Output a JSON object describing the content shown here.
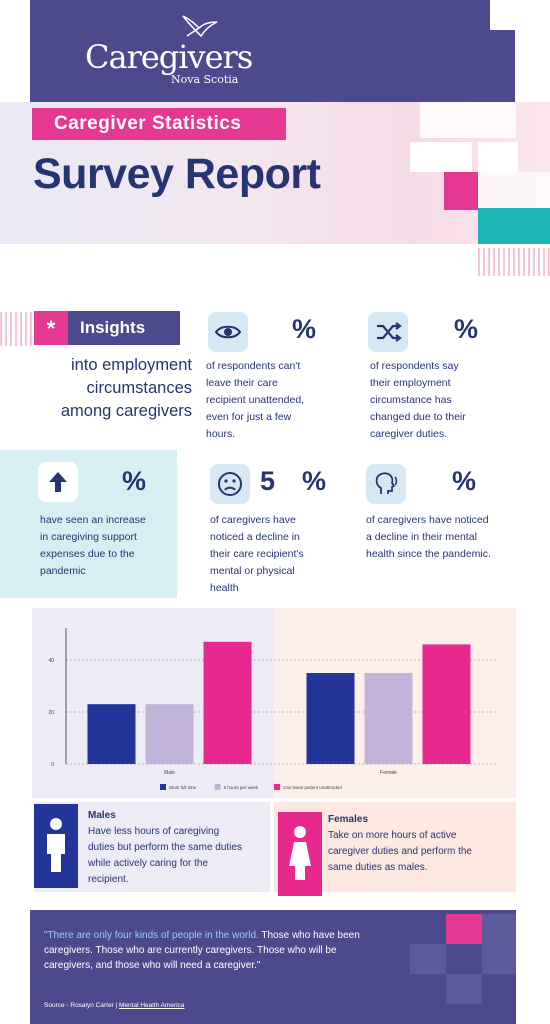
{
  "header": {
    "logo_main": "Caregivers",
    "logo_sub": "Nova Scotia"
  },
  "hero": {
    "tag": "Caregiver Statistics",
    "title": "Survey Report"
  },
  "insights": {
    "star": "*",
    "label": "Insights",
    "subtitle_lines": [
      "into employment",
      "circumstances",
      "among caregivers"
    ]
  },
  "stats": [
    {
      "icon": "eye-icon",
      "pct_symbol": "%",
      "text_lines": [
        "of respondents can't",
        "leave their care",
        "recipient unattended,",
        "even for just a few",
        "hours."
      ]
    },
    {
      "icon": "shuffle-icon",
      "pct_symbol": "%",
      "text_lines": [
        "of respondents say",
        "their employment",
        "circumstance has",
        "changed due to their",
        "caregiver duties."
      ]
    },
    {
      "icon": "arrow-up-icon",
      "pct_symbol": "%",
      "text_lines": [
        "have seen an increase",
        "in caregiving support",
        "expenses due to the",
        "pandemic"
      ]
    },
    {
      "icon": "sad-face-icon",
      "pct_symbol": "%",
      "digit": "5",
      "text_lines": [
        "of caregivers have",
        "noticed a decline in",
        "their care recipient's",
        "mental or physical",
        "health"
      ]
    },
    {
      "icon": "head-profile-icon",
      "pct_symbol": "%",
      "text_lines": [
        "of caregivers have noticed",
        "a decline in their mental",
        "health since the pandemic."
      ]
    }
  ],
  "chart_data": {
    "type": "bar",
    "categories": [
      "Male",
      "Female"
    ],
    "series": [
      {
        "name": "Work full time",
        "values": [
          23,
          35
        ],
        "color": "#24359a"
      },
      {
        "name": "5 hours per week",
        "values": [
          23,
          35
        ],
        "color": "#c2b4d8"
      },
      {
        "name": "Can leave patient unattended",
        "values": [
          47,
          46
        ],
        "color": "#e6288f"
      }
    ],
    "y_ticks": [
      0,
      20,
      40
    ],
    "ylim": [
      0,
      50
    ],
    "grid": true,
    "legend_position": "bottom"
  },
  "gender": {
    "males": {
      "title": "Males",
      "text_lines": [
        "Have less hours of caregiving",
        "duties but perform the same duties",
        "while actively caring for the",
        "recipient."
      ]
    },
    "females": {
      "title": "Females",
      "text_lines": [
        "Take on more hours of active",
        "caregiver duties and perform the",
        "same duties as males."
      ]
    }
  },
  "footer": {
    "quote_highlight": "\"There are only four kinds of people in the world.",
    "quote_rest": " Those who have been caregivers. Those who are currently caregivers. Those who will be caregivers, and those who will need a caregiver.\"",
    "source_label": "Source  -  Rosalyn Carter  |",
    "source_link": "Mental Health America"
  },
  "colors": {
    "navy": "#263572",
    "purple": "#4c4a8d",
    "pink": "#e53891",
    "teal": "#1fb5b8",
    "light_blue": "#d7eef3"
  }
}
